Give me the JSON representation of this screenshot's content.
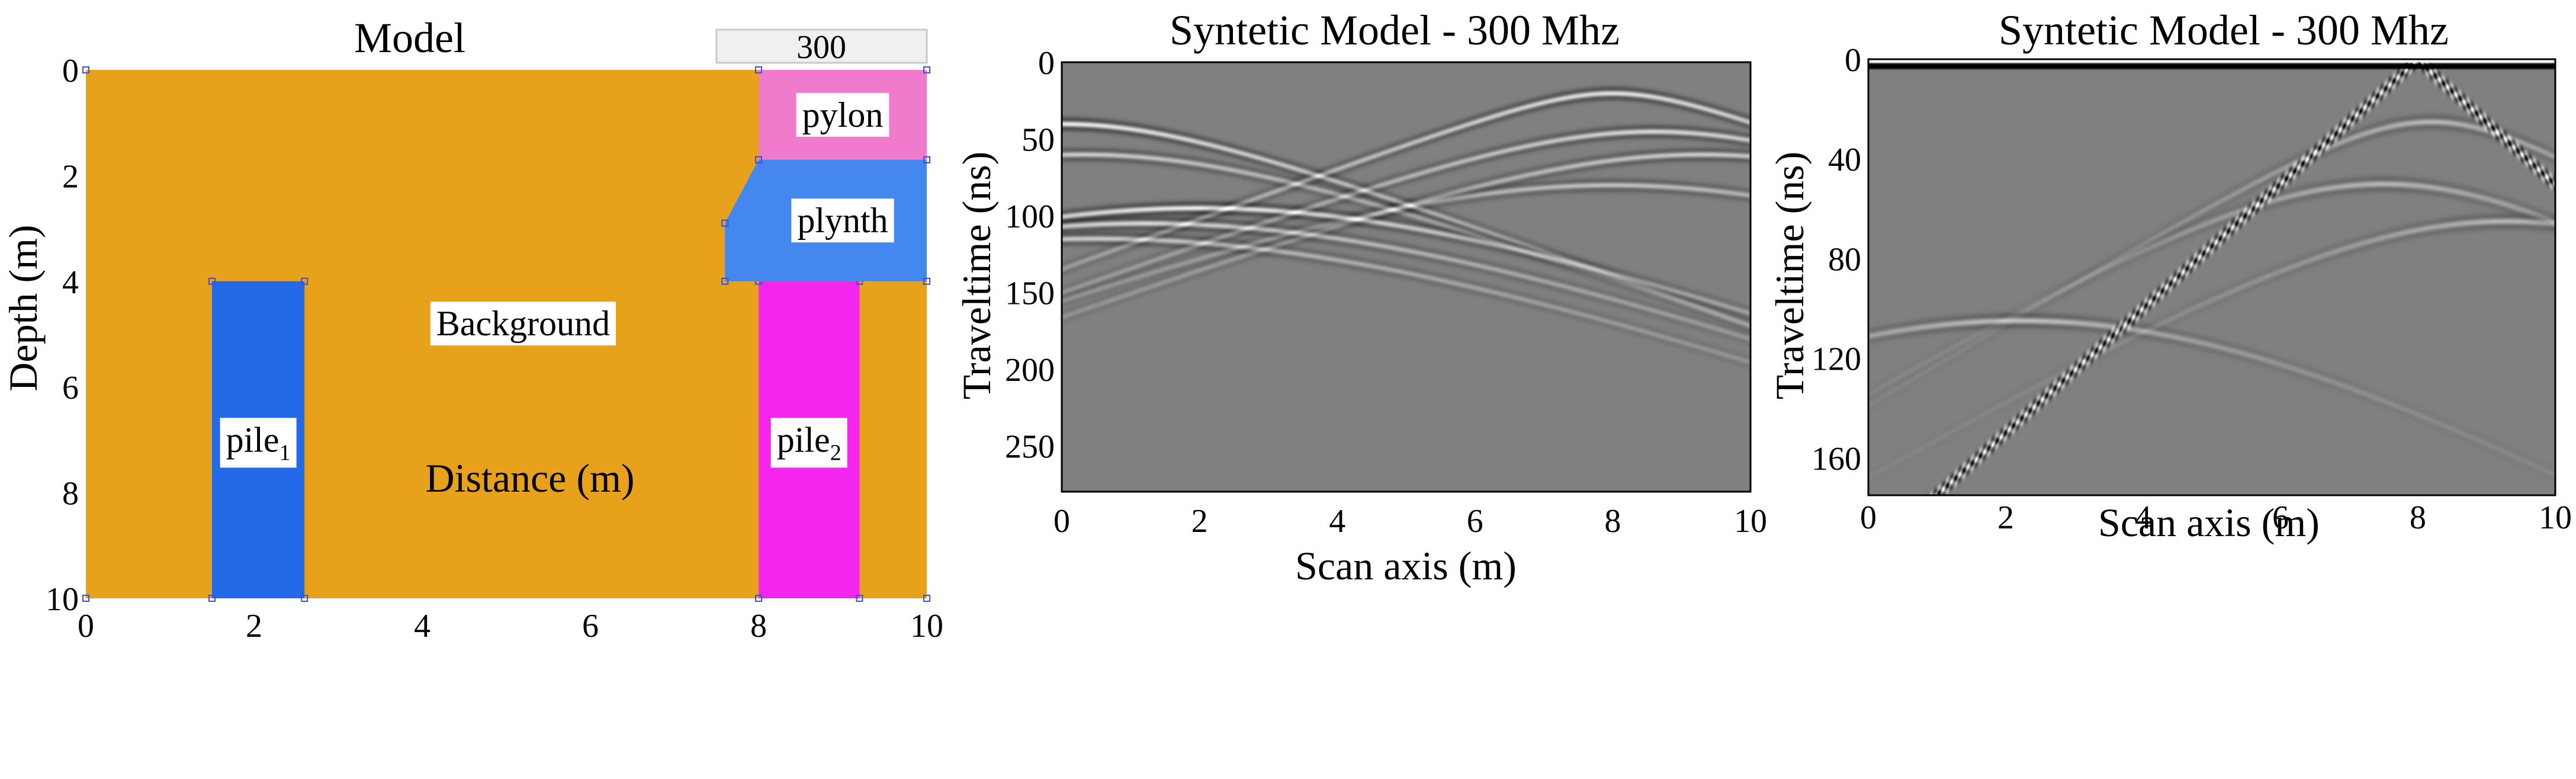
{
  "page": {
    "background": "#ffffff"
  },
  "chart_data": [
    {
      "type": "geometry-model",
      "title": "Model",
      "xlabel": "Distance (m)",
      "ylabel": "Depth (m)",
      "xlim": [
        0,
        10
      ],
      "ylim": [
        0,
        10
      ],
      "y_inverted": true,
      "xticks": [
        0,
        2,
        4,
        6,
        8,
        10
      ],
      "yticks": [
        0,
        2,
        4,
        6,
        8,
        10
      ],
      "box_label": "300",
      "regions": [
        {
          "name": "Background",
          "label": "Background",
          "color": "#e8a11b",
          "polygon": [
            [
              0,
              0
            ],
            [
              10,
              0
            ],
            [
              10,
              10
            ],
            [
              0,
              10
            ]
          ],
          "label_at": [
            5.2,
            4.8
          ]
        },
        {
          "name": "pile1",
          "label": "pile",
          "sub": "1",
          "color": "#2469e8",
          "polygon": [
            [
              1.5,
              4
            ],
            [
              2.6,
              4
            ],
            [
              2.6,
              10
            ],
            [
              1.5,
              10
            ]
          ],
          "label_at": [
            2.05,
            7.0
          ]
        },
        {
          "name": "pile2",
          "label": "pile",
          "sub": "2",
          "color": "#f425ee",
          "polygon": [
            [
              8.0,
              4
            ],
            [
              9.2,
              4
            ],
            [
              9.2,
              10
            ],
            [
              8.0,
              10
            ]
          ],
          "label_at": [
            8.6,
            7.0
          ]
        },
        {
          "name": "pylon",
          "label": "pylon",
          "color": "#f07acc",
          "polygon": [
            [
              8.0,
              0
            ],
            [
              10,
              0
            ],
            [
              10,
              1.7
            ],
            [
              8.0,
              1.7
            ]
          ],
          "label_at": [
            9.0,
            0.85
          ]
        },
        {
          "name": "plynth",
          "label": "plynth",
          "color": "#4487ee",
          "polygon": [
            [
              8.0,
              1.7
            ],
            [
              10,
              1.7
            ],
            [
              10,
              4
            ],
            [
              7.6,
              4
            ],
            [
              7.6,
              2.9
            ]
          ],
          "label_at": [
            9.0,
            2.85
          ]
        }
      ]
    },
    {
      "type": "heatmap",
      "title": "Syntetic Model - 300 Mhz",
      "xlabel": "Scan axis (m)",
      "ylabel": "Traveltime (ns)",
      "xlim": [
        0,
        10
      ],
      "ylim": [
        0,
        280
      ],
      "y_inverted": true,
      "xticks": [
        0,
        2,
        4,
        6,
        8,
        10
      ],
      "yticks": [
        0,
        50,
        100,
        150,
        200,
        250
      ],
      "colormap": "gray",
      "hyperbolas": [
        {
          "x0": 0.0,
          "t0": 40,
          "v": 0.12,
          "strength": 1.0
        },
        {
          "x0": 0.3,
          "t0": 60,
          "v": 0.12,
          "strength": 0.7
        },
        {
          "x0": 2.0,
          "t0": 95,
          "v": 0.12,
          "strength": 1.0
        },
        {
          "x0": 1.2,
          "t0": 105,
          "v": 0.12,
          "strength": 0.8
        },
        {
          "x0": 0.5,
          "t0": 115,
          "v": 0.12,
          "strength": 0.7
        },
        {
          "x0": 8.0,
          "t0": 20,
          "v": 0.12,
          "strength": 0.9
        },
        {
          "x0": 8.6,
          "t0": 45,
          "v": 0.12,
          "strength": 0.8
        },
        {
          "x0": 9.3,
          "t0": 60,
          "v": 0.12,
          "strength": 0.7
        },
        {
          "x0": 8.0,
          "t0": 80,
          "v": 0.12,
          "strength": 0.6
        }
      ]
    },
    {
      "type": "heatmap",
      "title": "Syntetic Model - 300 Mhz",
      "xlabel": "Scan axis (m)",
      "ylabel": "Traveltime (ns)",
      "xlim": [
        0,
        10
      ],
      "ylim": [
        0,
        175
      ],
      "y_inverted": true,
      "xticks": [
        0,
        2,
        4,
        6,
        8,
        10
      ],
      "yticks": [
        0,
        40,
        80,
        120,
        160
      ],
      "colormap": "gray",
      "direct_wave": {
        "x0": 8.0,
        "t0": 0,
        "slope_ns_per_m": 25
      },
      "hyperbolas": [
        {
          "x0": 2.2,
          "t0": 105,
          "v": 0.12,
          "strength": 0.6
        },
        {
          "x0": 7.5,
          "t0": 50,
          "v": 0.12,
          "strength": 0.5
        },
        {
          "x0": 9.3,
          "t0": 65,
          "v": 0.12,
          "strength": 0.5
        },
        {
          "x0": 8.2,
          "t0": 25,
          "v": 0.12,
          "strength": 0.5
        }
      ]
    }
  ]
}
